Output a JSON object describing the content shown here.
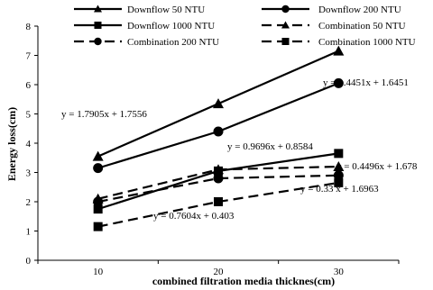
{
  "chart_data": {
    "type": "line",
    "title": "",
    "xlabel": "combined filtration media thicknes(cm)",
    "ylabel": "Energy loss(cm)",
    "categories": [
      10,
      20,
      30
    ],
    "ylim": [
      0,
      8
    ],
    "yticks": [
      0,
      1,
      2,
      3,
      4,
      5,
      6,
      7,
      8
    ],
    "grid": false,
    "legend_position": "top",
    "series": [
      {
        "name": "Downflow 50 NTU",
        "values": [
          3.55,
          5.35,
          7.15
        ],
        "marker": "triangle",
        "dash": "solid"
      },
      {
        "name": "Downflow 200 NTU",
        "values": [
          3.15,
          4.4,
          6.05
        ],
        "marker": "circle",
        "dash": "solid"
      },
      {
        "name": "Downflow 1000 NTU",
        "values": [
          1.75,
          3.05,
          3.65
        ],
        "marker": "square",
        "dash": "solid"
      },
      {
        "name": "Combination 50 NTU",
        "values": [
          2.1,
          3.1,
          3.2
        ],
        "marker": "triangle",
        "dash": "dashed"
      },
      {
        "name": "Combination 200 NTU",
        "values": [
          2.0,
          2.8,
          2.9
        ],
        "marker": "circle",
        "dash": "dashed"
      },
      {
        "name": "Combination 1000 NTU",
        "values": [
          1.15,
          2.0,
          2.65
        ],
        "marker": "square",
        "dash": "dashed"
      }
    ],
    "annotations": [
      "y = 1.7905x + 1.7556",
      "y = 1.4451x + 1.6451",
      "y = 0.9696x + 0.8584",
      "y = 0.4496x + 1.678",
      "y = 0.33 x + 1.6963",
      "y = 0.7604x + 0.403"
    ]
  }
}
